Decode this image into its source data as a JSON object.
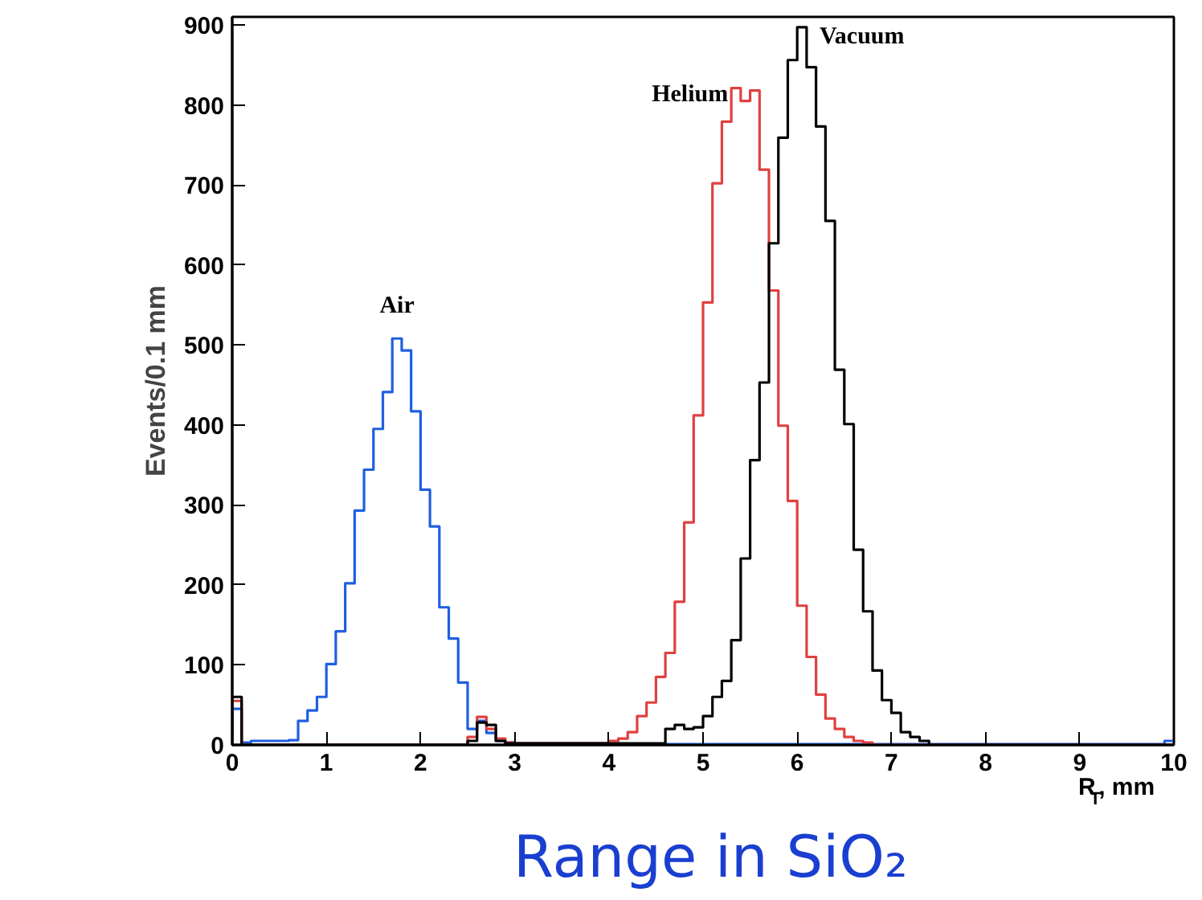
{
  "chart_data": {
    "type": "histogram",
    "title": "Range in SiO₂",
    "xlabel": "R$_{T}$, mm",
    "ylabel": "Events/0.1 mm",
    "bins": [
      0,
      0.1,
      0.2,
      0.3,
      0.4,
      0.5,
      0.6,
      0.7,
      0.8,
      0.9,
      1,
      1.1,
      1.2,
      1.3,
      1.4,
      1.5,
      1.6,
      1.7,
      1.8,
      1.9,
      2,
      2.1,
      2.2,
      2.3,
      2.4,
      2.5,
      2.6,
      2.7,
      2.8,
      2.9,
      3,
      3.1,
      3.2,
      3.3,
      3.4,
      3.5,
      3.6,
      3.7,
      3.8,
      3.9,
      4,
      4.1,
      4.2,
      4.3,
      4.4,
      4.5,
      4.6,
      4.7,
      4.8,
      4.9,
      5,
      5.1,
      5.2,
      5.3,
      5.4,
      5.5,
      5.6,
      5.7,
      5.8,
      5.9,
      6,
      6.1,
      6.2,
      6.3,
      6.4,
      6.5,
      6.6,
      6.7,
      6.8,
      6.9,
      7,
      7.1,
      7.2,
      7.3,
      7.4,
      7.5,
      7.6,
      7.7,
      7.8,
      7.9,
      8,
      8.1,
      8.2,
      8.3,
      8.4,
      8.5,
      8.6,
      8.7,
      8.8,
      8.9,
      9,
      9.1,
      9.2,
      9.3,
      9.4,
      9.5,
      9.6,
      9.7,
      9.8,
      9.9,
      10
    ],
    "series": [
      {
        "name": "Air",
        "color": "#1f5fe0",
        "values": [
          45,
          3,
          5,
          5,
          5,
          5,
          6,
          30,
          43,
          60,
          101,
          142,
          202,
          293,
          344,
          395,
          441,
          508,
          493,
          417,
          319,
          273,
          172,
          133,
          78,
          20,
          30,
          15,
          5,
          3,
          2,
          2,
          2,
          2,
          2,
          2,
          2,
          2,
          2,
          2,
          1,
          1,
          1,
          1,
          1,
          1,
          1,
          1,
          1,
          1,
          1,
          1,
          1,
          1,
          1,
          1,
          1,
          1,
          1,
          1,
          1,
          1,
          1,
          1,
          1,
          1,
          1,
          1,
          1,
          1,
          1,
          1,
          1,
          1,
          1,
          1,
          1,
          1,
          1,
          1,
          1,
          1,
          1,
          1,
          1,
          1,
          1,
          1,
          1,
          1,
          1,
          1,
          1,
          1,
          1,
          1,
          1,
          1,
          1,
          5
        ]
      },
      {
        "name": "Helium",
        "color": "#e04040",
        "values": [
          55,
          0,
          0,
          0,
          0,
          0,
          0,
          0,
          0,
          0,
          0,
          0,
          0,
          0,
          0,
          0,
          0,
          0,
          0,
          0,
          0,
          0,
          0,
          0,
          0,
          10,
          35,
          20,
          8,
          3,
          2,
          2,
          2,
          2,
          2,
          2,
          2,
          2,
          2,
          2,
          5,
          8,
          16,
          36,
          53,
          85,
          115,
          179,
          278,
          412,
          553,
          702,
          779,
          821,
          805,
          818,
          719,
          568,
          399,
          305,
          174,
          110,
          63,
          33,
          20,
          10,
          5,
          3,
          0,
          0,
          0,
          0,
          0,
          0,
          0,
          0,
          0,
          0,
          0,
          0,
          0,
          0,
          0,
          0,
          0,
          0,
          0,
          0,
          0,
          0,
          0,
          0,
          0,
          0,
          0,
          0,
          0,
          0,
          0,
          0
        ]
      },
      {
        "name": "Vacuum",
        "color": "#000000",
        "values": [
          60,
          0,
          0,
          0,
          0,
          0,
          0,
          0,
          0,
          0,
          0,
          0,
          0,
          0,
          0,
          0,
          0,
          0,
          0,
          0,
          0,
          0,
          0,
          0,
          0,
          5,
          28,
          25,
          5,
          2,
          2,
          2,
          2,
          2,
          2,
          2,
          2,
          2,
          2,
          2,
          2,
          2,
          2,
          2,
          2,
          2,
          20,
          25,
          20,
          22,
          36,
          60,
          80,
          131,
          233,
          356,
          453,
          627,
          759,
          856,
          897,
          847,
          773,
          655,
          469,
          401,
          244,
          167,
          93,
          56,
          40,
          16,
          10,
          5,
          0,
          0,
          0,
          0,
          0,
          0,
          0,
          0,
          0,
          0,
          0,
          0,
          0,
          0,
          0,
          0,
          0,
          0,
          0,
          0,
          0,
          0,
          0,
          0,
          0,
          0
        ]
      }
    ],
    "xlim": [
      0,
      10
    ],
    "xticks": [
      0,
      1,
      2,
      3,
      4,
      5,
      6,
      7,
      8,
      9,
      10
    ],
    "ylim": [
      0,
      910
    ],
    "yticks": [
      0,
      100,
      200,
      300,
      400,
      500,
      600,
      700,
      800,
      900
    ],
    "grid": false
  }
}
